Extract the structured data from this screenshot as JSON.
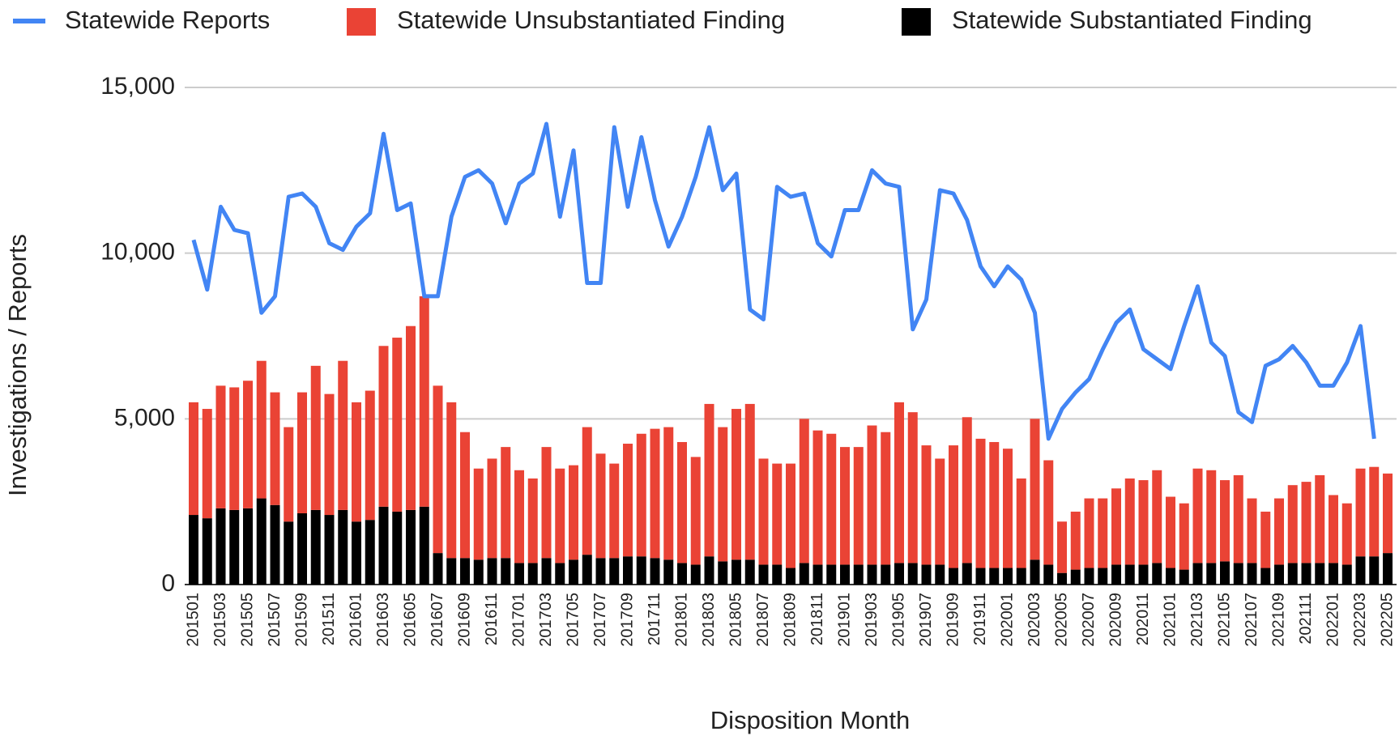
{
  "chart_data": {
    "type": "combo",
    "x_label": "Disposition Month",
    "y_label": "Investigations / Reports",
    "categories": [
      "201501",
      null,
      "201503",
      null,
      "201505",
      null,
      "201507",
      null,
      "201509",
      null,
      "201511",
      null,
      "201601",
      null,
      "201603",
      null,
      "201605",
      null,
      "201607",
      null,
      "201609",
      null,
      "201611",
      null,
      "201701",
      null,
      "201703",
      null,
      "201705",
      null,
      "201707",
      null,
      "201709",
      null,
      "201711",
      null,
      "201801",
      null,
      "201803",
      null,
      "201805",
      null,
      "201807",
      null,
      "201809",
      null,
      "201811",
      null,
      "201901",
      null,
      "201903",
      null,
      "201905",
      null,
      "201907",
      null,
      "201909",
      null,
      "201911",
      null,
      "202001",
      null,
      "202003",
      null,
      "202005",
      null,
      "202007",
      null,
      "202009",
      null,
      "202011",
      null,
      "202101",
      null,
      "202103",
      null,
      "202105",
      null,
      "202107",
      null,
      "202109",
      null,
      "202111",
      null,
      "202201",
      null,
      "202203",
      null,
      "202205"
    ],
    "series": [
      {
        "name": "Statewide Reports",
        "kind": "line",
        "color": "#4285f4",
        "values": [
          10400,
          8900,
          11400,
          10700,
          10600,
          8200,
          8700,
          11700,
          11800,
          11400,
          10300,
          10100,
          10800,
          11200,
          13600,
          11300,
          11500,
          8700,
          8700,
          11100,
          12300,
          12500,
          12100,
          10900,
          12100,
          12400,
          13900,
          11100,
          13100,
          9100,
          9100,
          13800,
          11400,
          13500,
          11600,
          10200,
          11100,
          12300,
          13800,
          11900,
          12400,
          8300,
          8000,
          12000,
          11700,
          11800,
          10300,
          9900,
          11300,
          11300,
          12500,
          12100,
          12000,
          7700,
          8600,
          11900,
          11800,
          11000,
          9600,
          9000,
          9600,
          9200,
          8200,
          4400,
          5300,
          5800,
          6200,
          7100,
          7900,
          8300,
          7100,
          6800,
          6500,
          7800,
          9000,
          7300,
          6900,
          5200,
          4900,
          6600,
          6800,
          7200,
          6700,
          6000,
          6000,
          6700,
          7800,
          4400,
          null
        ]
      },
      {
        "name": "Statewide Unsubstantiated Finding",
        "kind": "bar",
        "color": "#ea4335",
        "values": [
          3400,
          3300,
          3700,
          3700,
          3850,
          4150,
          3400,
          2850,
          3650,
          4350,
          3650,
          4500,
          3600,
          3900,
          4850,
          5250,
          5550,
          6350,
          5050,
          4700,
          3800,
          2750,
          3000,
          3350,
          2800,
          2550,
          3350,
          2850,
          2850,
          3850,
          3150,
          2850,
          3400,
          3700,
          3900,
          4000,
          3650,
          3250,
          4600,
          4050,
          4550,
          4700,
          3200,
          3050,
          3150,
          4350,
          4050,
          3950,
          3550,
          3550,
          4200,
          4000,
          4850,
          4550,
          3600,
          3200,
          3700,
          4400,
          3900,
          3800,
          3600,
          2700,
          4250,
          3150,
          1550,
          1750,
          2100,
          2100,
          2300,
          2600,
          2550,
          2800,
          2150,
          2000,
          2850,
          2800,
          2450,
          2650,
          1950,
          1700,
          2000,
          2350,
          2450,
          2650,
          2050,
          1850,
          2650,
          2700,
          2400
        ]
      },
      {
        "name": "Statewide Substantiated Finding",
        "kind": "bar",
        "color": "#000000",
        "values": [
          2100,
          2000,
          2300,
          2250,
          2300,
          2600,
          2400,
          1900,
          2150,
          2250,
          2100,
          2250,
          1900,
          1950,
          2350,
          2200,
          2250,
          2350,
          950,
          800,
          800,
          750,
          800,
          800,
          650,
          650,
          800,
          650,
          750,
          900,
          800,
          800,
          850,
          850,
          800,
          750,
          650,
          600,
          850,
          700,
          750,
          750,
          600,
          600,
          500,
          650,
          600,
          600,
          600,
          600,
          600,
          600,
          650,
          650,
          600,
          600,
          500,
          650,
          500,
          500,
          500,
          500,
          750,
          600,
          350,
          450,
          500,
          500,
          600,
          600,
          600,
          650,
          500,
          450,
          650,
          650,
          700,
          650,
          650,
          500,
          600,
          650,
          650,
          650,
          650,
          600,
          850,
          850,
          950
        ]
      }
    ],
    "ylim": [
      0,
      15000
    ],
    "yticks": [
      0,
      {
        "value": 5000,
        "label": "5,000"
      },
      {
        "value": 10000,
        "label": "10,000"
      },
      {
        "value": 15000,
        "label": "15,000"
      }
    ],
    "grid": true,
    "legend": "top"
  }
}
